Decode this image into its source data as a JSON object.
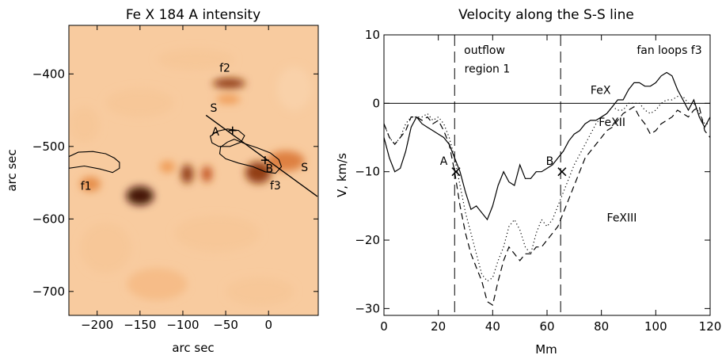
{
  "chart_data": [
    {
      "type": "heatmap",
      "title": "Fe X 184 A intensity",
      "xlabel": "arc sec",
      "ylabel": "arc sec",
      "xlim": [
        -233,
        58
      ],
      "ylim": [
        -733,
        -333
      ],
      "xticks": [
        -200,
        -150,
        -100,
        -50,
        0
      ],
      "yticks": [
        -700,
        -600,
        -500,
        -400
      ],
      "colormap": [
        "#fdf4ea",
        "#f9d2aa",
        "#ef9a52",
        "#c0501a",
        "#3d0c02"
      ],
      "labels": [
        {
          "id": "f1",
          "text": "f1",
          "x": -213,
          "y": -560
        },
        {
          "id": "f2",
          "text": "f2",
          "x": -51,
          "y": -397
        },
        {
          "id": "f3",
          "text": "f3",
          "x": 8,
          "y": -559
        },
        {
          "id": "a",
          "text": "A",
          "x": -62,
          "y": -485
        },
        {
          "id": "b",
          "text": "B",
          "x": 1,
          "y": -536
        },
        {
          "id": "s-top",
          "text": "S",
          "x": -64,
          "y": -452
        },
        {
          "id": "s-bottom",
          "text": "S",
          "x": 42,
          "y": -534
        }
      ],
      "ss_line": {
        "x1": -73,
        "y1": -457,
        "x2": 57,
        "y2": -569
      },
      "markers": [
        {
          "id": "a",
          "x": -42,
          "y": -478
        },
        {
          "id": "b",
          "x": -4,
          "y": -519
        }
      ],
      "contours": [
        {
          "id": "f1",
          "points": [
            [
              -233,
              -514
            ],
            [
              -222,
              -508
            ],
            [
              -205,
              -507
            ],
            [
              -190,
              -510
            ],
            [
              -180,
              -516
            ],
            [
              -174,
              -522
            ],
            [
              -174,
              -530
            ],
            [
              -182,
              -536
            ],
            [
              -197,
              -531
            ],
            [
              -215,
              -527
            ],
            [
              -233,
              -530
            ]
          ]
        },
        {
          "id": "f3",
          "points": [
            [
              -40,
              -490
            ],
            [
              -28,
              -496
            ],
            [
              -13,
              -502
            ],
            [
              2,
              -509
            ],
            [
              12,
              -518
            ],
            [
              15,
              -528
            ],
            [
              8,
              -537
            ],
            [
              -4,
              -535
            ],
            [
              -18,
              -528
            ],
            [
              -35,
              -523
            ],
            [
              -50,
              -517
            ],
            [
              -57,
              -510
            ],
            [
              -56,
              -501
            ],
            [
              -48,
              -494
            ]
          ]
        },
        {
          "id": "a-region",
          "points": [
            [
              -68,
              -486
            ],
            [
              -60,
              -479
            ],
            [
              -48,
              -476
            ],
            [
              -35,
              -478
            ],
            [
              -28,
              -485
            ],
            [
              -32,
              -494
            ],
            [
              -45,
              -500
            ],
            [
              -58,
              -500
            ],
            [
              -66,
              -495
            ]
          ]
        }
      ],
      "blobs": [
        {
          "x": -150,
          "y": -568,
          "rx": 16,
          "ry": 13,
          "weight": 1.0
        },
        {
          "x": -46,
          "y": -413,
          "rx": 19,
          "ry": 7,
          "weight": 0.85
        },
        {
          "x": -47,
          "y": -435,
          "rx": 14,
          "ry": 6,
          "weight": 0.5
        },
        {
          "x": -95,
          "y": -538,
          "rx": 7,
          "ry": 13,
          "weight": 0.85
        },
        {
          "x": -72,
          "y": -538,
          "rx": 6,
          "ry": 11,
          "weight": 0.75
        },
        {
          "x": -12,
          "y": -536,
          "rx": 15,
          "ry": 15,
          "weight": 0.85
        },
        {
          "x": -208,
          "y": -552,
          "rx": 12,
          "ry": 10,
          "weight": 0.55
        },
        {
          "x": -118,
          "y": -528,
          "rx": 9,
          "ry": 8,
          "weight": 0.5
        },
        {
          "x": 20,
          "y": -520,
          "rx": 22,
          "ry": 14,
          "weight": 0.6
        },
        {
          "x": -150,
          "y": -440,
          "rx": 40,
          "ry": 20,
          "weight": 0.3
        },
        {
          "x": -85,
          "y": -380,
          "rx": 45,
          "ry": 15,
          "weight": 0.3
        },
        {
          "x": -60,
          "y": -620,
          "rx": 50,
          "ry": 25,
          "weight": 0.3
        },
        {
          "x": -190,
          "y": -640,
          "rx": 30,
          "ry": 35,
          "weight": 0.3
        },
        {
          "x": 30,
          "y": -420,
          "rx": 20,
          "ry": 30,
          "weight": 0.25
        },
        {
          "x": -10,
          "y": -700,
          "rx": 40,
          "ry": 20,
          "weight": 0.3
        },
        {
          "x": -130,
          "y": -690,
          "rx": 35,
          "ry": 22,
          "weight": 0.35
        },
        {
          "x": -215,
          "y": -470,
          "rx": 18,
          "ry": 25,
          "weight": 0.3
        }
      ]
    },
    {
      "type": "line",
      "title": "Velocity along the S-S line",
      "xlabel": "Mm",
      "ylabel": "V, km/s",
      "xlim": [
        0,
        120
      ],
      "ylim": [
        -31,
        10
      ],
      "xticks": [
        0,
        20,
        40,
        60,
        80,
        100,
        120
      ],
      "yticks": [
        -30,
        -20,
        -10,
        0,
        10
      ],
      "zero_line": 0,
      "vlines": [
        26,
        65
      ],
      "region_labels": [
        {
          "id": "outflow-line1",
          "text": "outflow",
          "x": 37,
          "y": 7.2
        },
        {
          "id": "outflow-line2",
          "text": "region 1",
          "x": 38,
          "y": 4.5
        },
        {
          "id": "fan",
          "text": "fan loops f3",
          "x": 105,
          "y": 7.2
        }
      ],
      "point_labels": [
        {
          "id": "a",
          "text": "A",
          "x": 22,
          "y": -9
        },
        {
          "id": "b",
          "text": "B",
          "x": 61,
          "y": -9
        }
      ],
      "markers": [
        {
          "id": "a",
          "x": 26.5,
          "y": -10
        },
        {
          "id": "b",
          "x": 65.5,
          "y": -10
        }
      ],
      "series": [
        {
          "name": "FeX",
          "dash": "solid",
          "label_at": [
            76,
            1.4
          ],
          "x": [
            0,
            2,
            4,
            6,
            8,
            10,
            12,
            14,
            16,
            18,
            20,
            22,
            24,
            26,
            28,
            30,
            32,
            34,
            36,
            38,
            40,
            42,
            44,
            46,
            48,
            50,
            52,
            54,
            56,
            58,
            60,
            62,
            64,
            66,
            68,
            70,
            72,
            74,
            76,
            78,
            80,
            82,
            84,
            86,
            88,
            90,
            92,
            94,
            96,
            98,
            100,
            102,
            104,
            106,
            108,
            110,
            112,
            114,
            116,
            118,
            120
          ],
          "y": [
            -5,
            -8,
            -10,
            -9.5,
            -7,
            -3.5,
            -2,
            -3,
            -3.5,
            -4,
            -4.5,
            -5,
            -6,
            -8,
            -10,
            -13,
            -15.5,
            -15,
            -16,
            -17,
            -15,
            -12,
            -10,
            -11.5,
            -12,
            -9,
            -11,
            -11,
            -10,
            -10,
            -9.5,
            -9,
            -8,
            -7,
            -5.5,
            -4.5,
            -4,
            -3,
            -2.5,
            -2.5,
            -2,
            -1.5,
            -0.5,
            0.5,
            0.5,
            2,
            3,
            3,
            2.5,
            2.5,
            3,
            4,
            4.5,
            4,
            2,
            0.5,
            -1,
            0.5,
            -2,
            -3.5,
            -2
          ]
        },
        {
          "name": "FeXII",
          "dash": "dotted",
          "label_at": [
            79,
            -3.3
          ],
          "x": [
            0,
            2,
            4,
            6,
            8,
            10,
            12,
            14,
            16,
            18,
            20,
            22,
            24,
            26,
            28,
            30,
            32,
            34,
            36,
            38,
            40,
            42,
            44,
            46,
            48,
            50,
            52,
            54,
            56,
            58,
            60,
            62,
            64,
            66,
            68,
            70,
            72,
            74,
            76,
            78,
            80,
            82,
            84,
            86,
            88,
            90,
            92,
            94,
            96,
            98,
            100,
            102,
            104,
            106,
            108,
            110,
            112,
            114,
            116,
            118,
            120
          ],
          "y": [
            -3,
            -5,
            -6,
            -5,
            -3,
            -2,
            -2,
            -2,
            -1.5,
            -2.5,
            -2,
            -3,
            -5,
            -8,
            -12,
            -16,
            -19,
            -22,
            -25,
            -26,
            -25.5,
            -23,
            -21,
            -18,
            -17,
            -18.5,
            -21,
            -22,
            -19,
            -17,
            -18,
            -17,
            -15,
            -13,
            -11,
            -9,
            -7.5,
            -6,
            -4.5,
            -3,
            -2,
            -1.5,
            -0.5,
            -1,
            -1,
            0,
            0,
            0,
            -1,
            -1.5,
            -1,
            0,
            0.5,
            0.5,
            1,
            1,
            0,
            0,
            -1.5,
            -3,
            -3
          ]
        },
        {
          "name": "FeXIII",
          "dash": "dashed",
          "label_at": [
            82,
            -17.3
          ],
          "x": [
            0,
            2,
            4,
            6,
            8,
            10,
            12,
            14,
            16,
            18,
            20,
            22,
            24,
            26,
            28,
            30,
            32,
            34,
            36,
            38,
            40,
            42,
            44,
            46,
            48,
            50,
            52,
            54,
            56,
            58,
            60,
            62,
            64,
            66,
            68,
            70,
            72,
            74,
            76,
            78,
            80,
            82,
            84,
            86,
            88,
            90,
            92,
            94,
            96,
            98,
            100,
            102,
            104,
            106,
            108,
            110,
            112,
            114,
            116,
            118,
            120
          ],
          "y": [
            -3,
            -5,
            -6,
            -5,
            -4,
            -2,
            -2,
            -2.5,
            -2,
            -3,
            -2.5,
            -4,
            -6,
            -10,
            -15,
            -19,
            -22,
            -24,
            -26,
            -29,
            -29.5,
            -26,
            -23,
            -21,
            -22,
            -23,
            -22,
            -22,
            -21,
            -21,
            -20,
            -19,
            -18,
            -16,
            -14,
            -12,
            -10,
            -8,
            -7,
            -6,
            -5,
            -4,
            -3.5,
            -2.5,
            -1.5,
            -1,
            -0.5,
            -2,
            -3,
            -4.5,
            -4,
            -3,
            -2.5,
            -2,
            -1,
            -1.5,
            -2,
            -1,
            -0.5,
            -4,
            -5
          ]
        }
      ]
    }
  ]
}
